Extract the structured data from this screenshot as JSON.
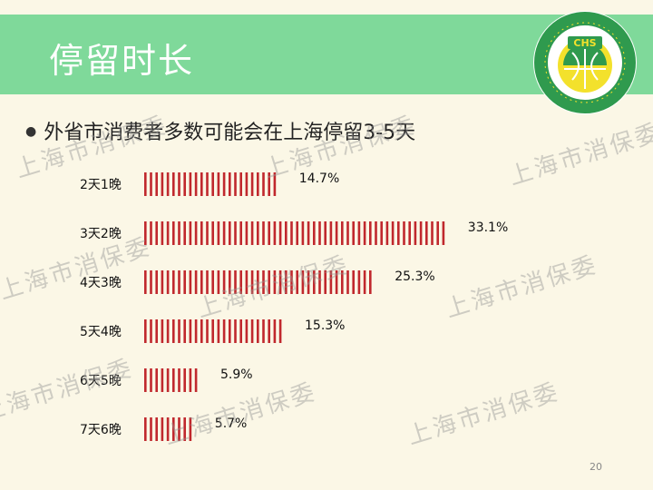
{
  "slide": {
    "title": "停留时长",
    "bullet": "外省市消费者多数可能会在上海停留3-5天",
    "watermark": "上海市消保委",
    "page_number": "20"
  },
  "colors": {
    "header": "#7fd99a",
    "bar": "#c0282d",
    "background": "#fbf7e6"
  },
  "chart_data": {
    "type": "bar",
    "orientation": "horizontal",
    "categories": [
      "2天1晚",
      "3天2晚",
      "4天3晚",
      "5天4晚",
      "6天5晚",
      "7天6晚"
    ],
    "values": [
      14.7,
      33.1,
      25.3,
      15.3,
      5.9,
      5.7
    ],
    "value_labels": [
      "14.7%",
      "33.1%",
      "25.3%",
      "15.3%",
      "5.9%",
      "5.7%"
    ],
    "unit": "%",
    "title": "",
    "xlabel": "",
    "ylabel": "",
    "xlim": [
      0,
      33.1
    ],
    "grid": false,
    "legend": "none",
    "bar_style": "striped"
  }
}
